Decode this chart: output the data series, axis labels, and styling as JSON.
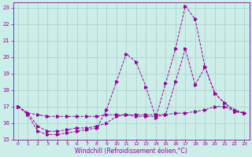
{
  "xlabel": "Windchill (Refroidissement éolien,°C)",
  "background_color": "#cceee8",
  "line_color": "#990099",
  "grid_color": "#aacccc",
  "xlim": [
    -0.5,
    23.5
  ],
  "ylim": [
    15,
    23.3
  ],
  "xticks": [
    0,
    1,
    2,
    3,
    4,
    5,
    6,
    7,
    8,
    9,
    10,
    11,
    12,
    13,
    14,
    15,
    16,
    17,
    18,
    19,
    20,
    21,
    22,
    23
  ],
  "yticks": [
    15,
    16,
    17,
    18,
    19,
    20,
    21,
    22,
    23
  ],
  "line1_x": [
    0,
    1,
    2,
    3,
    4,
    5,
    6,
    7,
    8,
    9,
    10,
    11,
    12,
    13,
    14,
    15,
    16,
    17,
    18,
    19,
    20,
    21,
    22,
    23
  ],
  "line1_y": [
    17.0,
    16.6,
    16.5,
    16.4,
    16.4,
    16.4,
    16.4,
    16.4,
    16.4,
    16.5,
    16.5,
    16.5,
    16.5,
    16.5,
    16.5,
    16.5,
    16.6,
    16.6,
    16.7,
    16.8,
    17.0,
    17.0,
    16.7,
    16.6
  ],
  "line2_x": [
    0,
    1,
    2,
    3,
    4,
    5,
    6,
    7,
    8,
    9,
    10,
    11,
    12,
    13,
    14,
    15,
    16,
    17,
    18,
    19,
    20,
    21,
    22,
    23
  ],
  "line2_y": [
    17.0,
    16.6,
    15.8,
    15.5,
    15.5,
    15.6,
    15.7,
    15.7,
    15.8,
    16.0,
    16.4,
    16.5,
    16.4,
    16.4,
    16.4,
    16.5,
    18.5,
    20.5,
    18.3,
    19.4,
    17.8,
    17.2,
    16.7,
    16.6
  ],
  "line3_x": [
    0,
    1,
    2,
    3,
    4,
    5,
    6,
    7,
    8,
    9,
    10,
    11,
    12,
    13,
    14,
    15,
    16,
    17,
    18,
    19,
    20,
    21,
    22,
    23
  ],
  "line3_y": [
    17.0,
    16.5,
    15.5,
    15.3,
    15.3,
    15.4,
    15.5,
    15.6,
    15.7,
    16.8,
    18.5,
    20.2,
    19.7,
    18.2,
    16.3,
    18.4,
    20.5,
    23.1,
    22.3,
    19.4,
    17.8,
    17.2,
    16.8,
    16.6
  ]
}
